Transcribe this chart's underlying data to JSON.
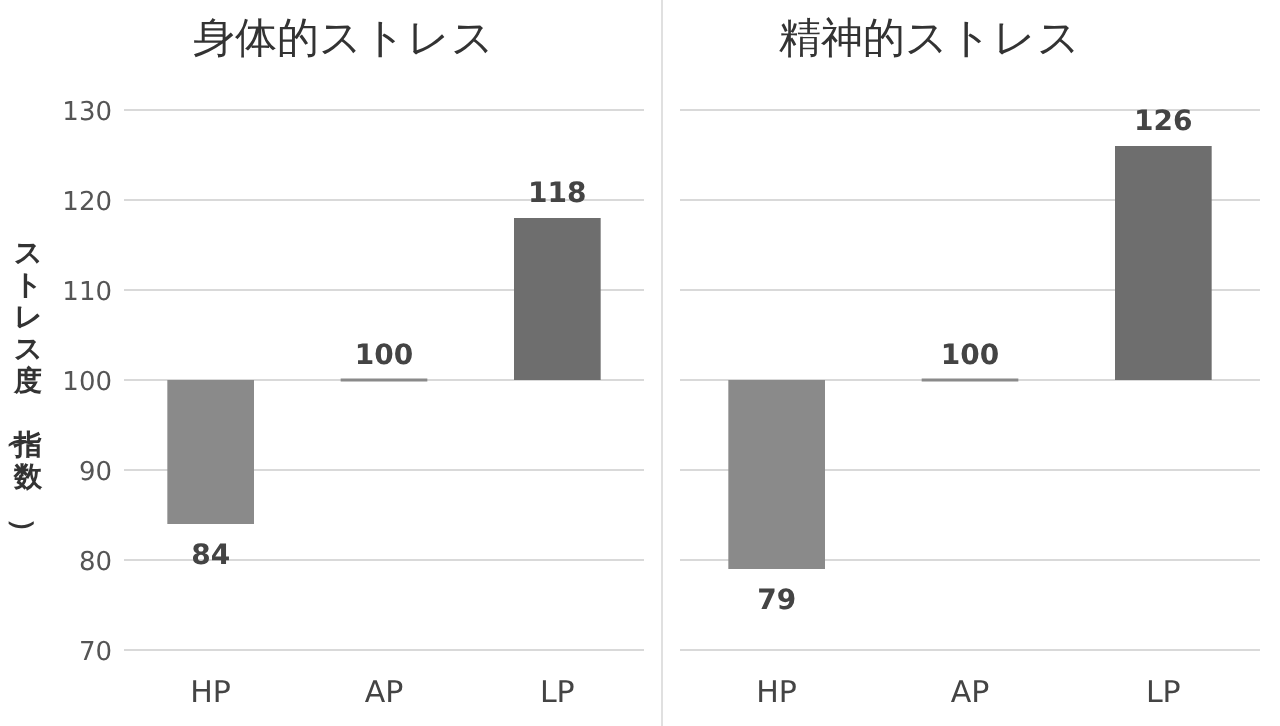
{
  "chart_data": [
    {
      "type": "bar",
      "title": "身体的ストレス",
      "ylabel": "ストレス度（指数）",
      "categories": [
        "HP",
        "AP",
        "LP"
      ],
      "base": [
        100,
        100,
        100
      ],
      "values": [
        -16,
        0,
        18
      ],
      "colors": [
        "#8a8a8a",
        "#8a8a8a",
        "#6e6e6e"
      ],
      "value_labels": [
        "84",
        "100",
        "118"
      ],
      "ylim": [
        70,
        130
      ],
      "yticks": [
        70,
        80,
        90,
        100,
        110,
        120,
        130
      ],
      "grid": "y"
    },
    {
      "type": "bar",
      "title": "精神的ストレス",
      "categories": [
        "HP",
        "AP",
        "LP"
      ],
      "base": [
        100,
        100,
        100
      ],
      "values": [
        -21,
        0,
        26
      ],
      "colors": [
        "#8a8a8a",
        "#8a8a8a",
        "#6e6e6e"
      ],
      "value_labels": [
        "79",
        "100",
        "126"
      ],
      "ylim": [
        70,
        130
      ],
      "yticks": [
        70,
        80,
        90,
        100,
        110,
        120,
        130
      ],
      "grid": "y",
      "tick_labels": "x"
    }
  ]
}
